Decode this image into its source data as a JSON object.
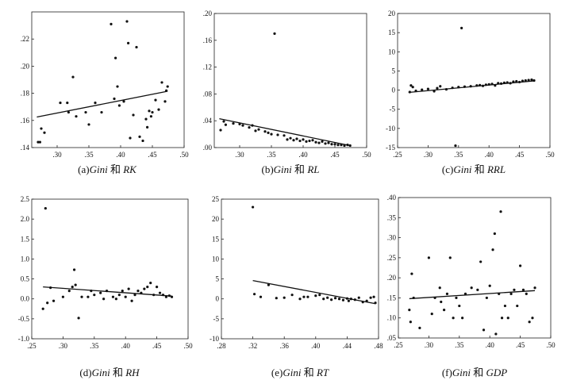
{
  "chart_data": [
    {
      "id": "a",
      "type": "scatter",
      "caption_prefix": "(a)",
      "caption_var1": "Gini",
      "caption_and": " 和 ",
      "caption_var2": "RK",
      "xlim": [
        0.26,
        0.5
      ],
      "ylim": [
        0.14,
        0.24
      ],
      "x_ticks": [
        0.3,
        0.35,
        0.4,
        0.45,
        0.5
      ],
      "x_tick_labels": [
        ".30",
        ".35",
        ".40",
        ".45",
        ".50"
      ],
      "y_ticks": [
        0.14,
        0.16,
        0.18,
        0.2,
        0.22
      ],
      "y_tick_labels": [
        ".14",
        ".16",
        ".18",
        ".20",
        ".22"
      ],
      "fit": [
        [
          0.268,
          0.1625
        ],
        [
          0.474,
          0.1815
        ]
      ],
      "points": [
        [
          0.27,
          0.144
        ],
        [
          0.273,
          0.144
        ],
        [
          0.275,
          0.154
        ],
        [
          0.28,
          0.151
        ],
        [
          0.305,
          0.173
        ],
        [
          0.316,
          0.173
        ],
        [
          0.318,
          0.166
        ],
        [
          0.325,
          0.192
        ],
        [
          0.33,
          0.163
        ],
        [
          0.345,
          0.166
        ],
        [
          0.35,
          0.157
        ],
        [
          0.36,
          0.173
        ],
        [
          0.37,
          0.166
        ],
        [
          0.385,
          0.231
        ],
        [
          0.39,
          0.176
        ],
        [
          0.392,
          0.206
        ],
        [
          0.395,
          0.185
        ],
        [
          0.398,
          0.171
        ],
        [
          0.405,
          0.174
        ],
        [
          0.41,
          0.233
        ],
        [
          0.412,
          0.217
        ],
        [
          0.415,
          0.147
        ],
        [
          0.42,
          0.164
        ],
        [
          0.425,
          0.214
        ],
        [
          0.43,
          0.148
        ],
        [
          0.435,
          0.145
        ],
        [
          0.44,
          0.161
        ],
        [
          0.442,
          0.155
        ],
        [
          0.445,
          0.167
        ],
        [
          0.448,
          0.163
        ],
        [
          0.45,
          0.166
        ],
        [
          0.455,
          0.175
        ],
        [
          0.46,
          0.168
        ],
        [
          0.465,
          0.188
        ],
        [
          0.47,
          0.174
        ],
        [
          0.472,
          0.182
        ],
        [
          0.474,
          0.185
        ]
      ]
    },
    {
      "id": "b",
      "type": "scatter",
      "caption_prefix": "(b)",
      "caption_var1": "Gini",
      "caption_and": " 和 ",
      "caption_var2": "RL",
      "xlim": [
        0.26,
        0.5
      ],
      "ylim": [
        0.0,
        0.2
      ],
      "x_ticks": [
        0.3,
        0.35,
        0.4,
        0.45,
        0.5
      ],
      "x_tick_labels": [
        ".30",
        ".35",
        ".40",
        ".45",
        ".50"
      ],
      "y_ticks": [
        0.0,
        0.04,
        0.08,
        0.12,
        0.16,
        0.2
      ],
      "y_tick_labels": [
        ".00",
        ".04",
        ".08",
        ".12",
        ".16",
        ".20"
      ],
      "fit": [
        [
          0.268,
          0.043
        ],
        [
          0.474,
          0.003
        ]
      ],
      "points": [
        [
          0.27,
          0.026
        ],
        [
          0.275,
          0.039
        ],
        [
          0.278,
          0.034
        ],
        [
          0.29,
          0.036
        ],
        [
          0.3,
          0.035
        ],
        [
          0.305,
          0.033
        ],
        [
          0.315,
          0.03
        ],
        [
          0.32,
          0.033
        ],
        [
          0.325,
          0.025
        ],
        [
          0.33,
          0.027
        ],
        [
          0.34,
          0.024
        ],
        [
          0.345,
          0.022
        ],
        [
          0.35,
          0.02
        ],
        [
          0.355,
          0.17
        ],
        [
          0.36,
          0.019
        ],
        [
          0.37,
          0.018
        ],
        [
          0.375,
          0.012
        ],
        [
          0.38,
          0.014
        ],
        [
          0.385,
          0.011
        ],
        [
          0.39,
          0.013
        ],
        [
          0.395,
          0.01
        ],
        [
          0.4,
          0.012
        ],
        [
          0.405,
          0.009
        ],
        [
          0.41,
          0.01
        ],
        [
          0.415,
          0.011
        ],
        [
          0.42,
          0.008
        ],
        [
          0.425,
          0.007
        ],
        [
          0.43,
          0.009
        ],
        [
          0.435,
          0.006
        ],
        [
          0.44,
          0.007
        ],
        [
          0.445,
          0.005
        ],
        [
          0.45,
          0.005
        ],
        [
          0.455,
          0.004
        ],
        [
          0.46,
          0.004
        ],
        [
          0.465,
          0.003
        ],
        [
          0.47,
          0.004
        ],
        [
          0.474,
          0.003
        ]
      ]
    },
    {
      "id": "c",
      "type": "scatter",
      "caption_prefix": "(c)",
      "caption_var1": "Gini",
      "caption_and": " 和 ",
      "caption_var2": "RRL",
      "xlim": [
        0.25,
        0.5
      ],
      "ylim": [
        -15,
        20
      ],
      "x_ticks": [
        0.25,
        0.3,
        0.35,
        0.4,
        0.45,
        0.5
      ],
      "x_tick_labels": [
        ".25",
        ".30",
        ".35",
        ".40",
        ".45",
        ".50"
      ],
      "y_ticks": [
        -15,
        -10,
        -5,
        0,
        5,
        10,
        15,
        20
      ],
      "y_tick_labels": [
        "-15",
        "-10",
        "-5",
        "0",
        "5",
        "10",
        "15",
        "20"
      ],
      "fit": [
        [
          0.268,
          -0.6
        ],
        [
          0.474,
          2.4
        ]
      ],
      "points": [
        [
          0.27,
          -0.5
        ],
        [
          0.272,
          1.2
        ],
        [
          0.275,
          0.8
        ],
        [
          0.28,
          -0.2
        ],
        [
          0.29,
          0.1
        ],
        [
          0.3,
          0.3
        ],
        [
          0.31,
          -0.3
        ],
        [
          0.315,
          0.5
        ],
        [
          0.32,
          1.0
        ],
        [
          0.33,
          0.2
        ],
        [
          0.34,
          0.6
        ],
        [
          0.345,
          -14.5
        ],
        [
          0.35,
          0.8
        ],
        [
          0.355,
          16.2
        ],
        [
          0.36,
          0.9
        ],
        [
          0.37,
          1.0
        ],
        [
          0.38,
          1.2
        ],
        [
          0.385,
          1.3
        ],
        [
          0.39,
          1.1
        ],
        [
          0.395,
          1.4
        ],
        [
          0.4,
          1.5
        ],
        [
          0.405,
          1.6
        ],
        [
          0.41,
          1.2
        ],
        [
          0.415,
          1.8
        ],
        [
          0.42,
          1.7
        ],
        [
          0.425,
          1.9
        ],
        [
          0.43,
          2.0
        ],
        [
          0.435,
          1.8
        ],
        [
          0.44,
          2.2
        ],
        [
          0.445,
          2.3
        ],
        [
          0.45,
          2.1
        ],
        [
          0.455,
          2.4
        ],
        [
          0.46,
          2.5
        ],
        [
          0.465,
          2.6
        ],
        [
          0.47,
          2.7
        ],
        [
          0.474,
          2.5
        ]
      ]
    },
    {
      "id": "d",
      "type": "scatter",
      "caption_prefix": "(d)",
      "caption_var1": "Gini",
      "caption_and": " 和 ",
      "caption_var2": "RH",
      "xlim": [
        0.25,
        0.5
      ],
      "ylim": [
        -1.0,
        2.5
      ],
      "x_ticks": [
        0.25,
        0.3,
        0.35,
        0.4,
        0.45,
        0.5
      ],
      "x_tick_labels": [
        ".25",
        ".30",
        ".35",
        ".40",
        ".45",
        ".50"
      ],
      "y_ticks": [
        -1.0,
        -0.5,
        0.0,
        0.5,
        1.0,
        1.5,
        2.0,
        2.5
      ],
      "y_tick_labels": [
        "-1.0",
        "-0.5",
        "0.0",
        "0.5",
        "1.0",
        "1.5",
        "2.0",
        "2.5"
      ],
      "fit": [
        [
          0.268,
          0.3
        ],
        [
          0.474,
          0.07
        ]
      ],
      "points": [
        [
          0.268,
          -0.25
        ],
        [
          0.272,
          2.27
        ],
        [
          0.275,
          -0.1
        ],
        [
          0.28,
          0.28
        ],
        [
          0.285,
          -0.05
        ],
        [
          0.3,
          0.05
        ],
        [
          0.31,
          0.2
        ],
        [
          0.315,
          0.3
        ],
        [
          0.318,
          0.73
        ],
        [
          0.32,
          0.35
        ],
        [
          0.325,
          -0.48
        ],
        [
          0.33,
          0.05
        ],
        [
          0.34,
          0.05
        ],
        [
          0.345,
          0.2
        ],
        [
          0.35,
          0.1
        ],
        [
          0.36,
          0.15
        ],
        [
          0.365,
          0.0
        ],
        [
          0.37,
          0.2
        ],
        [
          0.38,
          0.05
        ],
        [
          0.385,
          0.0
        ],
        [
          0.39,
          0.1
        ],
        [
          0.395,
          0.2
        ],
        [
          0.4,
          0.05
        ],
        [
          0.405,
          0.25
        ],
        [
          0.41,
          -0.05
        ],
        [
          0.415,
          0.1
        ],
        [
          0.42,
          0.2
        ],
        [
          0.425,
          0.15
        ],
        [
          0.43,
          0.25
        ],
        [
          0.435,
          0.3
        ],
        [
          0.44,
          0.4
        ],
        [
          0.445,
          0.1
        ],
        [
          0.45,
          0.3
        ],
        [
          0.455,
          0.15
        ],
        [
          0.46,
          0.1
        ],
        [
          0.465,
          0.05
        ],
        [
          0.47,
          0.08
        ],
        [
          0.474,
          0.05
        ]
      ]
    },
    {
      "id": "e",
      "type": "scatter",
      "caption_prefix": "(e)",
      "caption_var1": "Gini",
      "caption_and": " 和 ",
      "caption_var2": "RT",
      "xlim": [
        0.28,
        0.48
      ],
      "ylim": [
        -10,
        25
      ],
      "x_ticks": [
        0.28,
        0.32,
        0.36,
        0.4,
        0.44,
        0.48
      ],
      "x_tick_labels": [
        ".28",
        ".32",
        ".36",
        ".40",
        ".44",
        ".48"
      ],
      "y_ticks": [
        -10,
        -5,
        0,
        5,
        10,
        15,
        20,
        25
      ],
      "y_tick_labels": [
        "-10",
        "-5",
        "0",
        "5",
        "10",
        "15",
        "20",
        "25"
      ],
      "fit": [
        [
          0.32,
          4.6
        ],
        [
          0.476,
          -1.2
        ]
      ],
      "points": [
        [
          0.32,
          23.0
        ],
        [
          0.322,
          1.2
        ],
        [
          0.33,
          0.5
        ],
        [
          0.34,
          3.5
        ],
        [
          0.35,
          0.2
        ],
        [
          0.36,
          0.3
        ],
        [
          0.37,
          1.0
        ],
        [
          0.38,
          0.0
        ],
        [
          0.385,
          0.5
        ],
        [
          0.39,
          0.5
        ],
        [
          0.4,
          0.8
        ],
        [
          0.405,
          1.0
        ],
        [
          0.41,
          0.0
        ],
        [
          0.415,
          0.3
        ],
        [
          0.42,
          -0.2
        ],
        [
          0.425,
          0.2
        ],
        [
          0.43,
          0.0
        ],
        [
          0.435,
          -0.3
        ],
        [
          0.44,
          0.1
        ],
        [
          0.442,
          -0.5
        ],
        [
          0.445,
          0.0
        ],
        [
          0.45,
          -0.2
        ],
        [
          0.455,
          0.3
        ],
        [
          0.46,
          -0.8
        ],
        [
          0.465,
          -0.5
        ],
        [
          0.47,
          0.3
        ],
        [
          0.474,
          0.5
        ],
        [
          0.476,
          -1.0
        ]
      ]
    },
    {
      "id": "f",
      "type": "scatter",
      "caption_prefix": "(f)",
      "caption_var1": "Gini",
      "caption_and": " 和 ",
      "caption_var2": "GDP",
      "xlim": [
        0.25,
        0.5
      ],
      "ylim": [
        0.05,
        0.4
      ],
      "x_ticks": [
        0.25,
        0.3,
        0.35,
        0.4,
        0.45,
        0.5
      ],
      "x_tick_labels": [
        ".25",
        ".30",
        ".35",
        ".40",
        ".45",
        ".50"
      ],
      "y_ticks": [
        0.05,
        0.1,
        0.15,
        0.2,
        0.25,
        0.3,
        0.35,
        0.4
      ],
      "y_tick_labels": [
        ".05",
        ".10",
        ".15",
        ".20",
        ".25",
        ".30",
        ".35",
        ".40"
      ],
      "fit": [
        [
          0.268,
          0.148
        ],
        [
          0.474,
          0.168
        ]
      ],
      "points": [
        [
          0.268,
          0.12
        ],
        [
          0.27,
          0.09
        ],
        [
          0.272,
          0.21
        ],
        [
          0.275,
          0.15
        ],
        [
          0.285,
          0.075
        ],
        [
          0.3,
          0.25
        ],
        [
          0.305,
          0.11
        ],
        [
          0.31,
          0.15
        ],
        [
          0.318,
          0.175
        ],
        [
          0.32,
          0.14
        ],
        [
          0.325,
          0.12
        ],
        [
          0.33,
          0.16
        ],
        [
          0.335,
          0.25
        ],
        [
          0.34,
          0.1
        ],
        [
          0.345,
          0.15
        ],
        [
          0.35,
          0.13
        ],
        [
          0.355,
          0.1
        ],
        [
          0.36,
          0.16
        ],
        [
          0.37,
          0.175
        ],
        [
          0.38,
          0.17
        ],
        [
          0.385,
          0.24
        ],
        [
          0.39,
          0.07
        ],
        [
          0.395,
          0.15
        ],
        [
          0.4,
          0.18
        ],
        [
          0.405,
          0.27
        ],
        [
          0.408,
          0.31
        ],
        [
          0.41,
          0.06
        ],
        [
          0.415,
          0.16
        ],
        [
          0.418,
          0.365
        ],
        [
          0.42,
          0.1
        ],
        [
          0.425,
          0.13
        ],
        [
          0.43,
          0.1
        ],
        [
          0.435,
          0.16
        ],
        [
          0.44,
          0.17
        ],
        [
          0.445,
          0.13
        ],
        [
          0.45,
          0.23
        ],
        [
          0.455,
          0.17
        ],
        [
          0.46,
          0.16
        ],
        [
          0.465,
          0.09
        ],
        [
          0.47,
          0.1
        ],
        [
          0.474,
          0.175
        ]
      ]
    }
  ]
}
